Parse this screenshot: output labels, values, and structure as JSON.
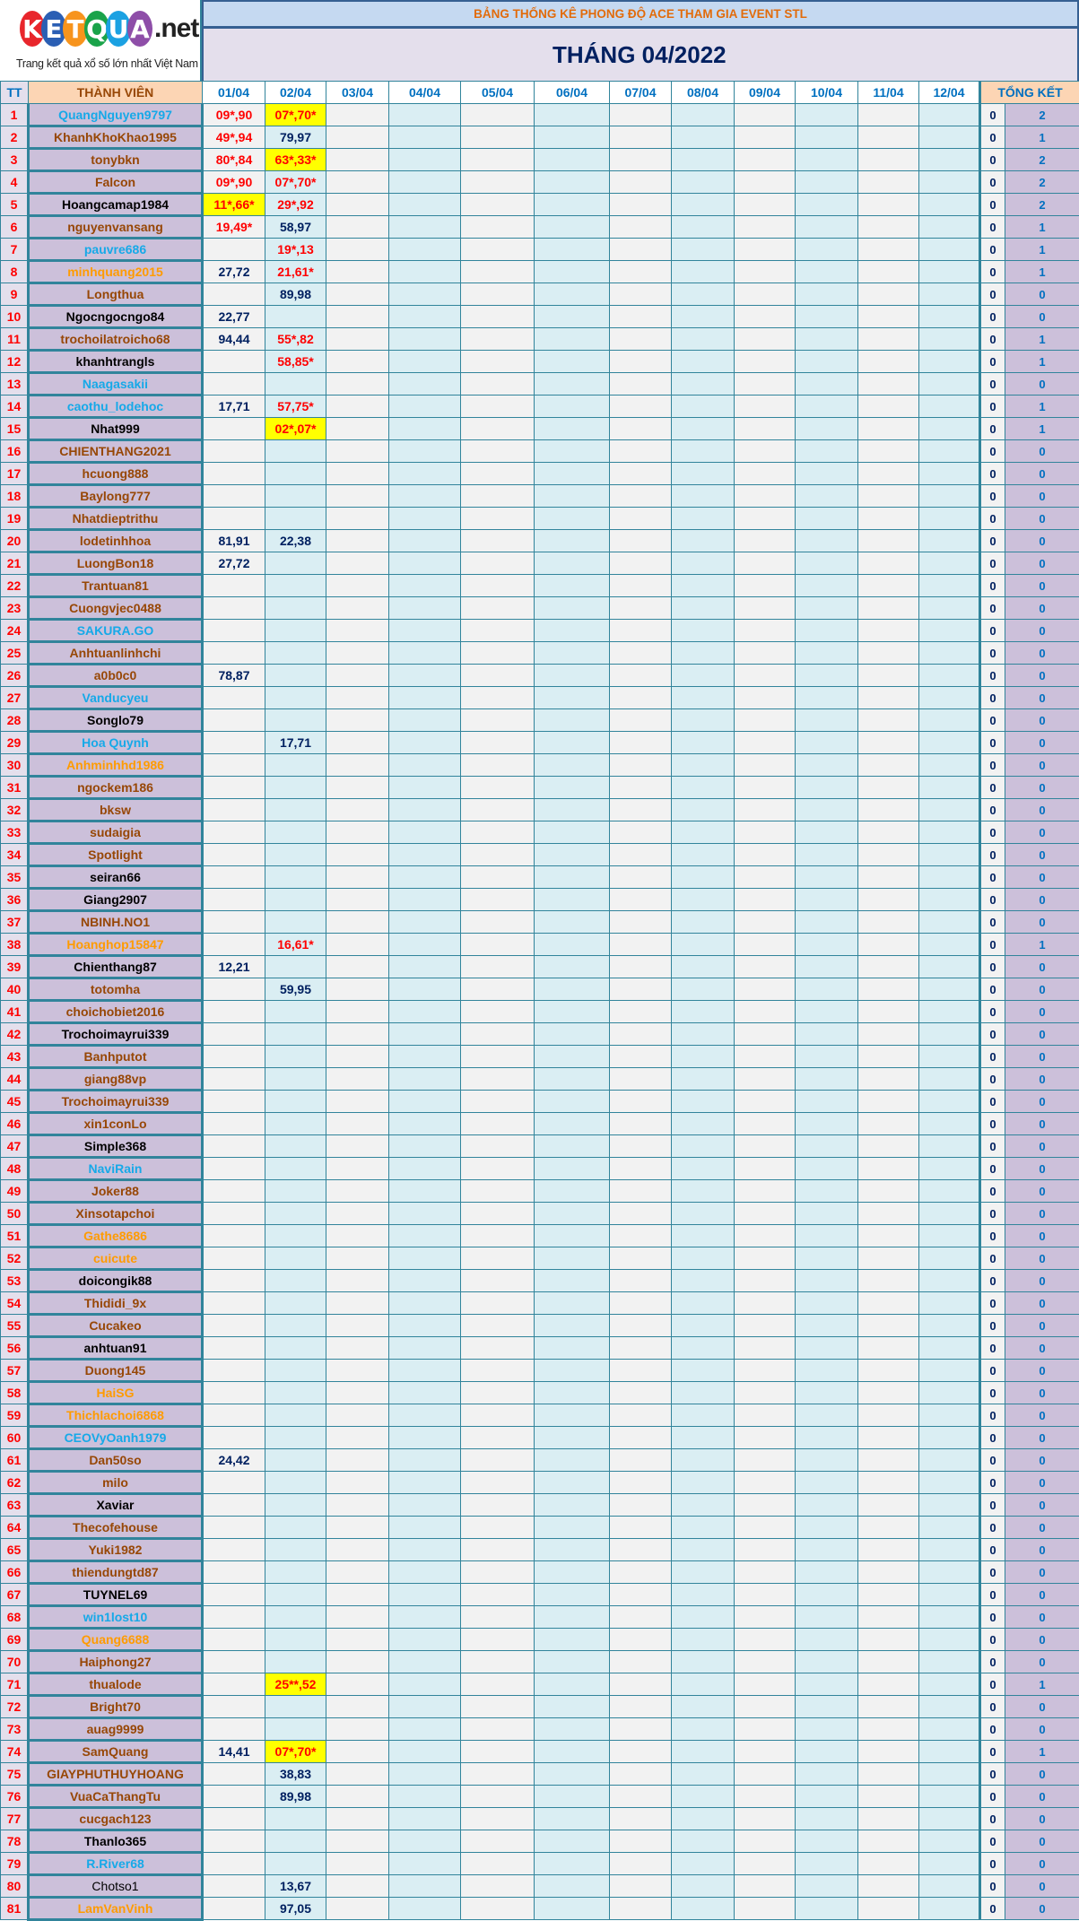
{
  "logo": {
    "text": "KETQUA.net",
    "tagline": "Trang kết quả xổ số lớn nhất Việt Nam",
    "letters": [
      "K",
      "E",
      "T",
      "Q",
      "U",
      "A"
    ],
    "suffix": ".net",
    "colors": [
      "#e8262c",
      "#2b5fb4",
      "#f7941d",
      "#1aa34a",
      "#1ba1e2",
      "#8e4ea8"
    ]
  },
  "header": {
    "title": "BẢNG THỐNG KÊ PHONG ĐỘ ACE THAM GIA EVENT STL",
    "month": "THÁNG 04/2022"
  },
  "columns": {
    "tt": "TT",
    "member": "THÀNH VIÊN",
    "dates": [
      "01/04",
      "02/04",
      "03/04",
      "04/04",
      "05/04",
      "06/04",
      "07/04",
      "08/04",
      "09/04",
      "10/04",
      "11/04",
      "12/04"
    ],
    "total": "TỔNG KẾT"
  },
  "colors": {
    "brown": "#974706",
    "cyan": "#16a9e8",
    "orange": "#ff9b00",
    "highlight": "#ffff00",
    "star": "#ff0000",
    "border": "#31849b"
  },
  "rows": [
    {
      "tt": "1",
      "name": "QuangNguyen9797",
      "color": "cyan",
      "d": [
        "09*,90",
        "07*,70*"
      ],
      "s": [
        "red",
        "yellow"
      ],
      "z": "0",
      "tk": "2"
    },
    {
      "tt": "2",
      "name": "KhanhKhoKhao1995",
      "color": "brown",
      "d": [
        "49*,94",
        "79,97"
      ],
      "s": [
        "red",
        "v"
      ],
      "z": "0",
      "tk": "1"
    },
    {
      "tt": "3",
      "name": "tonybkn",
      "color": "brown",
      "d": [
        "80*,84",
        "63*,33*"
      ],
      "s": [
        "red",
        "yellow"
      ],
      "z": "0",
      "tk": "2"
    },
    {
      "tt": "4",
      "name": "Falcon",
      "color": "brown",
      "d": [
        "09*,90",
        "07*,70*"
      ],
      "s": [
        "red",
        "red"
      ],
      "z": "0",
      "tk": "2"
    },
    {
      "tt": "5",
      "name": "Hoangcamap1984",
      "color": "black",
      "d": [
        "11*,66*",
        "29*,92"
      ],
      "s": [
        "yellow",
        "red"
      ],
      "z": "0",
      "tk": "2"
    },
    {
      "tt": "6",
      "name": "nguyenvansang",
      "color": "brown",
      "d": [
        "19,49*",
        "58,97"
      ],
      "s": [
        "red",
        "v"
      ],
      "z": "0",
      "tk": "1"
    },
    {
      "tt": "7",
      "name": "pauvre686",
      "color": "cyan",
      "d": [
        "",
        "19*,13"
      ],
      "s": [
        "",
        "red"
      ],
      "z": "0",
      "tk": "1"
    },
    {
      "tt": "8",
      "name": "minhquang2015",
      "color": "orange",
      "d": [
        "27,72",
        "21,61*"
      ],
      "s": [
        "v",
        "red"
      ],
      "z": "0",
      "tk": "1"
    },
    {
      "tt": "9",
      "name": "Longthua",
      "color": "brown",
      "d": [
        "",
        "89,98"
      ],
      "s": [
        "",
        "v"
      ],
      "z": "0",
      "tk": "0"
    },
    {
      "tt": "10",
      "name": "Ngocngocngo84",
      "color": "black",
      "d": [
        "22,77",
        ""
      ],
      "s": [
        "v",
        ""
      ],
      "z": "0",
      "tk": "0"
    },
    {
      "tt": "11",
      "name": "trochoilatroicho68",
      "color": "brown",
      "d": [
        "94,44",
        "55*,82"
      ],
      "s": [
        "v",
        "red"
      ],
      "z": "0",
      "tk": "1"
    },
    {
      "tt": "12",
      "name": "khanhtrangls",
      "color": "black",
      "d": [
        "",
        "58,85*"
      ],
      "s": [
        "",
        "red"
      ],
      "z": "0",
      "tk": "1"
    },
    {
      "tt": "13",
      "name": "Naagasakii",
      "color": "cyan",
      "d": [
        "",
        ""
      ],
      "s": [
        "",
        ""
      ],
      "z": "0",
      "tk": "0"
    },
    {
      "tt": "14",
      "name": "caothu_lodehoc",
      "color": "cyan",
      "d": [
        "17,71",
        "57,75*"
      ],
      "s": [
        "v",
        "red"
      ],
      "z": "0",
      "tk": "1"
    },
    {
      "tt": "15",
      "name": "Nhat999",
      "color": "black",
      "d": [
        "",
        "02*,07*"
      ],
      "s": [
        "",
        "yellow"
      ],
      "z": "0",
      "tk": "1"
    },
    {
      "tt": "16",
      "name": "CHIENTHANG2021",
      "color": "brown",
      "d": [
        "",
        ""
      ],
      "s": [
        "",
        ""
      ],
      "z": "0",
      "tk": "0"
    },
    {
      "tt": "17",
      "name": "hcuong888",
      "color": "brown",
      "d": [
        "",
        ""
      ],
      "s": [
        "",
        ""
      ],
      "z": "0",
      "tk": "0"
    },
    {
      "tt": "18",
      "name": "Baylong777",
      "color": "brown",
      "d": [
        "",
        ""
      ],
      "s": [
        "",
        ""
      ],
      "z": "0",
      "tk": "0"
    },
    {
      "tt": "19",
      "name": "Nhatdieptrithu",
      "color": "brown",
      "d": [
        "",
        ""
      ],
      "s": [
        "",
        ""
      ],
      "z": "0",
      "tk": "0"
    },
    {
      "tt": "20",
      "name": "lodetinhhoa",
      "color": "brown",
      "d": [
        "81,91",
        "22,38"
      ],
      "s": [
        "v",
        "v"
      ],
      "z": "0",
      "tk": "0"
    },
    {
      "tt": "21",
      "name": "LuongBon18",
      "color": "brown",
      "d": [
        "27,72",
        ""
      ],
      "s": [
        "v",
        ""
      ],
      "z": "0",
      "tk": "0"
    },
    {
      "tt": "22",
      "name": "Trantuan81",
      "color": "brown",
      "d": [
        "",
        ""
      ],
      "s": [
        "",
        ""
      ],
      "z": "0",
      "tk": "0"
    },
    {
      "tt": "23",
      "name": "Cuongvjec0488",
      "color": "brown",
      "d": [
        "",
        ""
      ],
      "s": [
        "",
        ""
      ],
      "z": "0",
      "tk": "0"
    },
    {
      "tt": "24",
      "name": "SAKURA.GO",
      "color": "cyan",
      "d": [
        "",
        ""
      ],
      "s": [
        "",
        ""
      ],
      "z": "0",
      "tk": "0"
    },
    {
      "tt": "25",
      "name": "Anhtuanlinhchi",
      "color": "brown",
      "d": [
        "",
        ""
      ],
      "s": [
        "",
        ""
      ],
      "z": "0",
      "tk": "0"
    },
    {
      "tt": "26",
      "name": "a0b0c0",
      "color": "brown",
      "d": [
        "78,87",
        ""
      ],
      "s": [
        "v",
        ""
      ],
      "z": "0",
      "tk": "0"
    },
    {
      "tt": "27",
      "name": "Vanducyeu",
      "color": "cyan",
      "d": [
        "",
        ""
      ],
      "s": [
        "",
        ""
      ],
      "z": "0",
      "tk": "0"
    },
    {
      "tt": "28",
      "name": "Songlo79",
      "color": "black",
      "d": [
        "",
        ""
      ],
      "s": [
        "",
        ""
      ],
      "z": "0",
      "tk": "0"
    },
    {
      "tt": "29",
      "name": "Hoa Quynh",
      "color": "cyan",
      "d": [
        "",
        "17,71"
      ],
      "s": [
        "",
        "v"
      ],
      "z": "0",
      "tk": "0"
    },
    {
      "tt": "30",
      "name": "Anhminhhd1986",
      "color": "orange",
      "d": [
        "",
        ""
      ],
      "s": [
        "",
        ""
      ],
      "z": "0",
      "tk": "0"
    },
    {
      "tt": "31",
      "name": "ngockem186",
      "color": "brown",
      "d": [
        "",
        ""
      ],
      "s": [
        "",
        ""
      ],
      "z": "0",
      "tk": "0"
    },
    {
      "tt": "32",
      "name": "bksw",
      "color": "brown",
      "d": [
        "",
        ""
      ],
      "s": [
        "",
        ""
      ],
      "z": "0",
      "tk": "0"
    },
    {
      "tt": "33",
      "name": "sudaigia",
      "color": "brown",
      "d": [
        "",
        ""
      ],
      "s": [
        "",
        ""
      ],
      "z": "0",
      "tk": "0"
    },
    {
      "tt": "34",
      "name": "Spotlight",
      "color": "brown",
      "d": [
        "",
        ""
      ],
      "s": [
        "",
        ""
      ],
      "z": "0",
      "tk": "0"
    },
    {
      "tt": "35",
      "name": "seiran66",
      "color": "black",
      "d": [
        "",
        ""
      ],
      "s": [
        "",
        ""
      ],
      "z": "0",
      "tk": "0"
    },
    {
      "tt": "36",
      "name": "Giang2907",
      "color": "black",
      "d": [
        "",
        ""
      ],
      "s": [
        "",
        ""
      ],
      "z": "0",
      "tk": "0"
    },
    {
      "tt": "37",
      "name": "NBINH.NO1",
      "color": "brown",
      "d": [
        "",
        ""
      ],
      "s": [
        "",
        ""
      ],
      "z": "0",
      "tk": "0"
    },
    {
      "tt": "38",
      "name": "Hoanghop15847",
      "color": "orange",
      "d": [
        "",
        "16,61*"
      ],
      "s": [
        "",
        "red"
      ],
      "z": "0",
      "tk": "1"
    },
    {
      "tt": "39",
      "name": "Chienthang87",
      "color": "black",
      "d": [
        "12,21",
        ""
      ],
      "s": [
        "v",
        ""
      ],
      "z": "0",
      "tk": "0"
    },
    {
      "tt": "40",
      "name": "totomha",
      "color": "brown",
      "d": [
        "",
        "59,95"
      ],
      "s": [
        "",
        "v"
      ],
      "z": "0",
      "tk": "0"
    },
    {
      "tt": "41",
      "name": "choichobiet2016",
      "color": "brown",
      "d": [
        "",
        ""
      ],
      "s": [
        "",
        ""
      ],
      "z": "0",
      "tk": "0"
    },
    {
      "tt": "42",
      "name": "Trochoimayrui339",
      "color": "black",
      "d": [
        "",
        ""
      ],
      "s": [
        "",
        ""
      ],
      "z": "0",
      "tk": "0"
    },
    {
      "tt": "43",
      "name": "Banhputot",
      "color": "brown",
      "d": [
        "",
        ""
      ],
      "s": [
        "",
        ""
      ],
      "z": "0",
      "tk": "0"
    },
    {
      "tt": "44",
      "name": "giang88vp",
      "color": "brown",
      "d": [
        "",
        ""
      ],
      "s": [
        "",
        ""
      ],
      "z": "0",
      "tk": "0"
    },
    {
      "tt": "45",
      "name": "Trochoimayrui339",
      "color": "brown",
      "d": [
        "",
        ""
      ],
      "s": [
        "",
        ""
      ],
      "z": "0",
      "tk": "0"
    },
    {
      "tt": "46",
      "name": "xin1conLo",
      "color": "brown",
      "d": [
        "",
        ""
      ],
      "s": [
        "",
        ""
      ],
      "z": "0",
      "tk": "0"
    },
    {
      "tt": "47",
      "name": "Simple368",
      "color": "black",
      "d": [
        "",
        ""
      ],
      "s": [
        "",
        ""
      ],
      "z": "0",
      "tk": "0"
    },
    {
      "tt": "48",
      "name": "NaviRain",
      "color": "cyan",
      "d": [
        "",
        ""
      ],
      "s": [
        "",
        ""
      ],
      "z": "0",
      "tk": "0"
    },
    {
      "tt": "49",
      "name": "Joker88",
      "color": "brown",
      "d": [
        "",
        ""
      ],
      "s": [
        "",
        ""
      ],
      "z": "0",
      "tk": "0"
    },
    {
      "tt": "50",
      "name": "Xinsotapchoi",
      "color": "brown",
      "d": [
        "",
        ""
      ],
      "s": [
        "",
        ""
      ],
      "z": "0",
      "tk": "0"
    },
    {
      "tt": "51",
      "name": "Gathe8686",
      "color": "orange",
      "d": [
        "",
        ""
      ],
      "s": [
        "",
        ""
      ],
      "z": "0",
      "tk": "0"
    },
    {
      "tt": "52",
      "name": "cuicute",
      "color": "orange",
      "d": [
        "",
        ""
      ],
      "s": [
        "",
        ""
      ],
      "z": "0",
      "tk": "0"
    },
    {
      "tt": "53",
      "name": "doicongik88",
      "color": "black",
      "d": [
        "",
        ""
      ],
      "s": [
        "",
        ""
      ],
      "z": "0",
      "tk": "0"
    },
    {
      "tt": "54",
      "name": "Thididi_9x",
      "color": "brown",
      "d": [
        "",
        ""
      ],
      "s": [
        "",
        ""
      ],
      "z": "0",
      "tk": "0"
    },
    {
      "tt": "55",
      "name": "Cucakeo",
      "color": "brown",
      "d": [
        "",
        ""
      ],
      "s": [
        "",
        ""
      ],
      "z": "0",
      "tk": "0"
    },
    {
      "tt": "56",
      "name": "anhtuan91",
      "color": "black",
      "d": [
        "",
        ""
      ],
      "s": [
        "",
        ""
      ],
      "z": "0",
      "tk": "0"
    },
    {
      "tt": "57",
      "name": "Duong145",
      "color": "brown",
      "d": [
        "",
        ""
      ],
      "s": [
        "",
        ""
      ],
      "z": "0",
      "tk": "0"
    },
    {
      "tt": "58",
      "name": "HaiSG",
      "color": "orange",
      "d": [
        "",
        ""
      ],
      "s": [
        "",
        ""
      ],
      "z": "0",
      "tk": "0"
    },
    {
      "tt": "59",
      "name": "Thichlachoi6868",
      "color": "orange",
      "d": [
        "",
        ""
      ],
      "s": [
        "",
        ""
      ],
      "z": "0",
      "tk": "0"
    },
    {
      "tt": "60",
      "name": "CEOVyOanh1979",
      "color": "cyan",
      "d": [
        "",
        ""
      ],
      "s": [
        "",
        ""
      ],
      "z": "0",
      "tk": "0"
    },
    {
      "tt": "61",
      "name": "Dan50so",
      "color": "brown",
      "d": [
        "24,42",
        ""
      ],
      "s": [
        "v",
        ""
      ],
      "z": "0",
      "tk": "0"
    },
    {
      "tt": "62",
      "name": "milo",
      "color": "brown",
      "d": [
        "",
        ""
      ],
      "s": [
        "",
        ""
      ],
      "z": "0",
      "tk": "0"
    },
    {
      "tt": "63",
      "name": "Xaviar",
      "color": "black",
      "d": [
        "",
        ""
      ],
      "s": [
        "",
        ""
      ],
      "z": "0",
      "tk": "0"
    },
    {
      "tt": "64",
      "name": "Thecofehouse",
      "color": "brown",
      "d": [
        "",
        ""
      ],
      "s": [
        "",
        ""
      ],
      "z": "0",
      "tk": "0"
    },
    {
      "tt": "65",
      "name": "Yuki1982",
      "color": "brown",
      "d": [
        "",
        ""
      ],
      "s": [
        "",
        ""
      ],
      "z": "0",
      "tk": "0"
    },
    {
      "tt": "66",
      "name": "thiendungtd87",
      "color": "brown",
      "d": [
        "",
        ""
      ],
      "s": [
        "",
        ""
      ],
      "z": "0",
      "tk": "0"
    },
    {
      "tt": "67",
      "name": "TUYNEL69",
      "color": "black",
      "d": [
        "",
        ""
      ],
      "s": [
        "",
        ""
      ],
      "z": "0",
      "tk": "0"
    },
    {
      "tt": "68",
      "name": "win1lost10",
      "color": "cyan",
      "d": [
        "",
        ""
      ],
      "s": [
        "",
        ""
      ],
      "z": "0",
      "tk": "0"
    },
    {
      "tt": "69",
      "name": "Quang6688",
      "color": "orange",
      "d": [
        "",
        ""
      ],
      "s": [
        "",
        ""
      ],
      "z": "0",
      "tk": "0"
    },
    {
      "tt": "70",
      "name": "Haiphong27",
      "color": "brown",
      "d": [
        "",
        ""
      ],
      "s": [
        "",
        ""
      ],
      "z": "0",
      "tk": "0"
    },
    {
      "tt": "71",
      "name": "thualode",
      "color": "brown",
      "d": [
        "",
        "25**,52"
      ],
      "s": [
        "",
        "yellow"
      ],
      "z": "0",
      "tk": "1"
    },
    {
      "tt": "72",
      "name": "Bright70",
      "color": "brown",
      "d": [
        "",
        ""
      ],
      "s": [
        "",
        ""
      ],
      "z": "0",
      "tk": "0"
    },
    {
      "tt": "73",
      "name": "auag9999",
      "color": "brown",
      "d": [
        "",
        ""
      ],
      "s": [
        "",
        ""
      ],
      "z": "0",
      "tk": "0"
    },
    {
      "tt": "74",
      "name": "SamQuang",
      "color": "brown",
      "d": [
        "14,41",
        "07*,70*"
      ],
      "s": [
        "v",
        "yellow"
      ],
      "z": "0",
      "tk": "1"
    },
    {
      "tt": "75",
      "name": "GIAYPHUTHUYHOANG",
      "color": "brown",
      "d": [
        "",
        "38,83"
      ],
      "s": [
        "",
        "v"
      ],
      "z": "0",
      "tk": "0"
    },
    {
      "tt": "76",
      "name": "VuaCaThangTu",
      "color": "brown",
      "d": [
        "",
        "89,98"
      ],
      "s": [
        "",
        "v"
      ],
      "z": "0",
      "tk": "0"
    },
    {
      "tt": "77",
      "name": "cucgach123",
      "color": "brown",
      "d": [
        "",
        ""
      ],
      "s": [
        "",
        ""
      ],
      "z": "0",
      "tk": "0"
    },
    {
      "tt": "78",
      "name": "Thanlo365",
      "color": "black",
      "d": [
        "",
        ""
      ],
      "s": [
        "",
        ""
      ],
      "z": "0",
      "tk": "0"
    },
    {
      "tt": "79",
      "name": "R.River68",
      "color": "cyan",
      "d": [
        "",
        ""
      ],
      "s": [
        "",
        ""
      ],
      "z": "0",
      "tk": "0"
    },
    {
      "tt": "80",
      "name": "Chotso1",
      "color": "plain",
      "d": [
        "",
        "13,67"
      ],
      "s": [
        "",
        "v"
      ],
      "z": "0",
      "tk": "0"
    },
    {
      "tt": "81",
      "name": "LamVanVinh",
      "color": "orange",
      "d": [
        "",
        "97,05"
      ],
      "s": [
        "",
        "v"
      ],
      "z": "0",
      "tk": "0"
    }
  ]
}
